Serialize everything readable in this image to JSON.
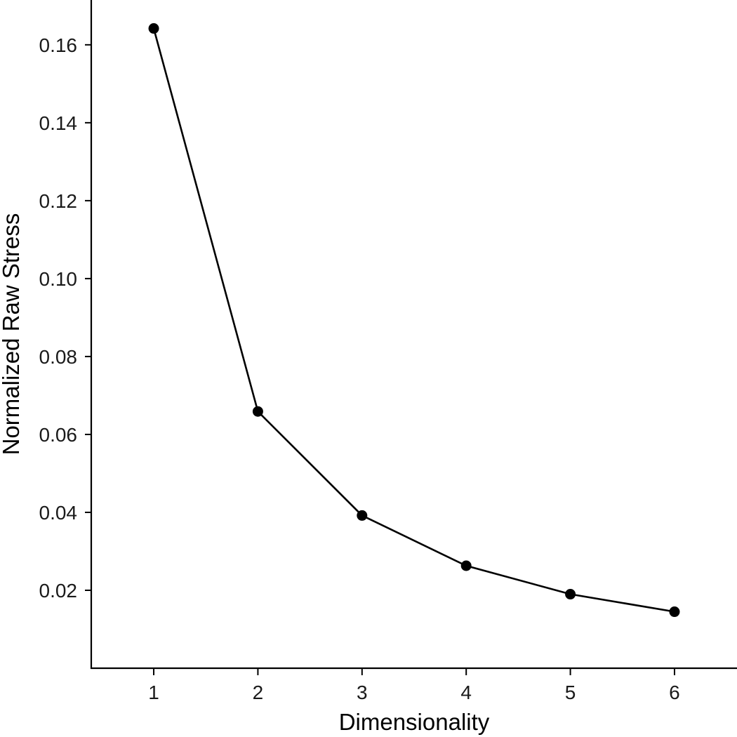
{
  "chart_data": {
    "type": "line",
    "title": "",
    "xlabel": "Dimensionality",
    "ylabel": "Normalized Raw Stress",
    "x": [
      1,
      2,
      3,
      4,
      5,
      6
    ],
    "values": [
      0.1642,
      0.0659,
      0.0392,
      0.0263,
      0.019,
      0.0145
    ],
    "xlim": [
      0.4,
      6.6
    ],
    "ylim": [
      0.0,
      0.1715
    ],
    "xticks": [
      "1",
      "2",
      "3",
      "4",
      "5",
      "6"
    ],
    "yticks": [
      "0.02",
      "0.04",
      "0.06",
      "0.08",
      "0.10",
      "0.12",
      "0.14",
      "0.16"
    ],
    "ytick_values": [
      0.02,
      0.04,
      0.06,
      0.08,
      0.1,
      0.12,
      0.14,
      0.16
    ],
    "grid": false,
    "legend": "none",
    "line_color": "#000000",
    "marker_color": "#000000"
  }
}
